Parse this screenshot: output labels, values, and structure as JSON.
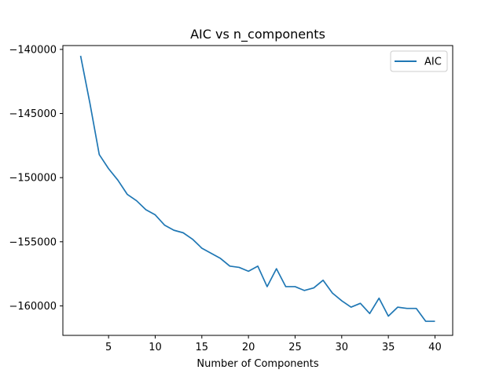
{
  "chart_data": {
    "type": "line",
    "title": "AIC vs n_components",
    "xlabel": "Number of Components",
    "ylabel": "",
    "xlim": [
      0.1,
      41.9
    ],
    "ylim": [
      -162300,
      -139700
    ],
    "xticks": [
      5,
      10,
      15,
      20,
      25,
      30,
      35,
      40
    ],
    "xtick_labels": [
      "5",
      "10",
      "15",
      "20",
      "25",
      "30",
      "35",
      "40"
    ],
    "yticks": [
      -140000,
      -145000,
      -150000,
      -155000,
      -160000
    ],
    "ytick_labels": [
      "−140000",
      "−145000",
      "−150000",
      "−155000",
      "−160000"
    ],
    "grid": false,
    "legend_position": "top-right",
    "series": [
      {
        "name": "AIC",
        "color": "#1f77b4",
        "x": [
          2,
          3,
          4,
          5,
          6,
          7,
          8,
          9,
          10,
          11,
          12,
          13,
          14,
          15,
          16,
          17,
          18,
          19,
          20,
          21,
          22,
          23,
          24,
          25,
          26,
          27,
          28,
          29,
          30,
          31,
          32,
          33,
          34,
          35,
          36,
          37,
          38,
          39,
          40
        ],
        "y": [
          -140500,
          -144200,
          -148200,
          -149300,
          -150200,
          -151300,
          -151800,
          -152500,
          -152900,
          -153700,
          -154100,
          -154300,
          -154800,
          -155500,
          -155900,
          -156300,
          -156900,
          -157000,
          -157300,
          -156900,
          -158500,
          -157100,
          -158500,
          -158500,
          -158800,
          -158600,
          -158000,
          -159000,
          -159600,
          -160100,
          -159800,
          -160600,
          -159400,
          -160800,
          -160100,
          -160200,
          -160200,
          -161200,
          -161200
        ]
      }
    ]
  }
}
